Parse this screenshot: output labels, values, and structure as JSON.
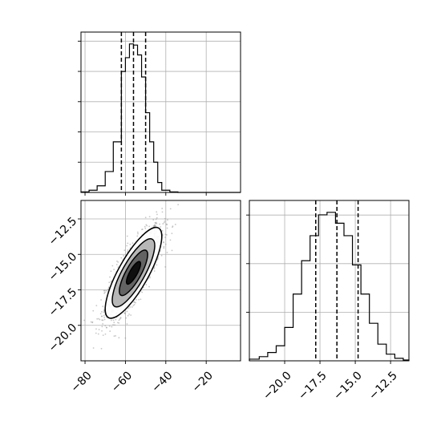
{
  "chart_data": [
    {
      "panel": "top-left",
      "type": "histogram",
      "xlim": [
        -82,
        -3
      ],
      "x_ticks": [
        -80,
        -60,
        -40,
        -20
      ],
      "grid": true,
      "quantile_lines": [
        -62,
        -56,
        -50
      ],
      "bin_edges": [
        -82,
        -78,
        -74,
        -70,
        -66,
        -62,
        -60,
        -58,
        -56,
        -54,
        -52,
        -50,
        -48,
        -46,
        -44,
        -42,
        -38,
        -34,
        -3
      ],
      "counts": [
        1,
        4,
        12,
        38,
        92,
        220,
        245,
        270,
        268,
        250,
        210,
        145,
        92,
        55,
        18,
        4,
        1,
        0
      ]
    },
    {
      "panel": "top-right",
      "type": "histogram",
      "xlim": [
        -22.5,
        -11.2
      ],
      "x_ticks": [
        -20.0,
        -17.5,
        -15.0,
        -12.5
      ],
      "x_tick_labels": [
        "−20.0",
        "−17.5",
        "−15.0",
        "−12.5"
      ],
      "grid": true,
      "quantile_lines": [
        -17.8,
        -16.3,
        -14.8
      ],
      "bin_edges": [
        -22.5,
        -21.8,
        -21.2,
        -20.6,
        -20.0,
        -19.4,
        -18.8,
        -18.2,
        -17.6,
        -17.0,
        -16.4,
        -15.8,
        -15.2,
        -14.6,
        -14.0,
        -13.4,
        -12.8,
        -12.2,
        -11.6,
        -11.2
      ],
      "counts": [
        2,
        5,
        10,
        18,
        40,
        80,
        120,
        150,
        175,
        178,
        165,
        150,
        115,
        80,
        45,
        20,
        8,
        3,
        1
      ]
    },
    {
      "panel": "bottom-left",
      "type": "scatter-contour",
      "xlim": [
        -82,
        -3
      ],
      "ylim": [
        -22.5,
        -11.2
      ],
      "x_ticks": [
        -80,
        -60,
        -40,
        -20
      ],
      "x_tick_labels": [
        "−80",
        "−60",
        "−40",
        "−20"
      ],
      "y_ticks": [
        -12.5,
        -15.0,
        -17.5,
        -20.0
      ],
      "y_tick_labels": [
        "−12.5",
        "−15.0",
        "−17.5",
        "−20.0"
      ],
      "grid": true,
      "center": [
        -56,
        -16.3
      ],
      "std": [
        7,
        1.6
      ],
      "correlation": 0.8,
      "contour_levels_sigma": [
        0.5,
        1.0,
        1.5,
        2.0
      ]
    }
  ],
  "colors": {
    "contour_fill_inner": "#000000",
    "contour_fill_mid": "#555555",
    "contour_fill_outer": "#aaaaaa",
    "points": "#999999"
  }
}
